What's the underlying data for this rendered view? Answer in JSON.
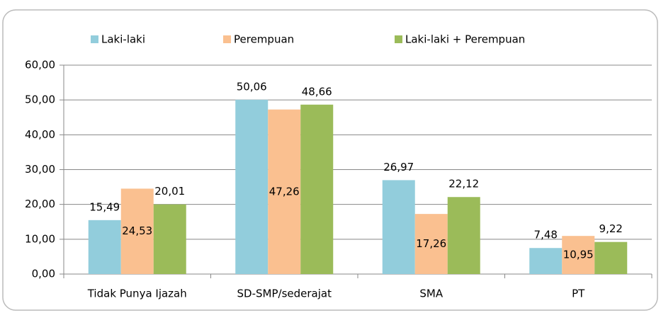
{
  "chart_data": {
    "type": "bar",
    "categories": [
      "Tidak Punya Ijazah",
      "SD-SMP/sederajat",
      "SMA",
      "PT"
    ],
    "series": [
      {
        "name": "Laki-laki",
        "color": "#92cddc",
        "values": [
          15.49,
          50.06,
          26.97,
          7.48
        ],
        "value_labels": [
          "15,49",
          "50,06",
          "26,97",
          "7,48"
        ]
      },
      {
        "name": "Perempuan",
        "color": "#fac090",
        "values": [
          24.53,
          47.26,
          17.26,
          10.95
        ],
        "value_labels": [
          "24,53",
          "47,26",
          "17,26",
          "10,95"
        ]
      },
      {
        "name": "Laki-laki + Perempuan",
        "color": "#9bbb59",
        "values": [
          20.01,
          48.66,
          22.12,
          9.22
        ],
        "value_labels": [
          "20,01",
          "48,66",
          "22,12",
          "9,22"
        ]
      }
    ],
    "ylim": [
      0,
      60
    ],
    "yticks": [
      {
        "value": 0,
        "label": "0,00"
      },
      {
        "value": 10,
        "label": "10,00"
      },
      {
        "value": 20,
        "label": "20,00"
      },
      {
        "value": 30,
        "label": "30,00"
      },
      {
        "value": 40,
        "label": "40,00"
      },
      {
        "value": 50,
        "label": "50,00"
      },
      {
        "value": 60,
        "label": "60,00"
      }
    ],
    "grid": true,
    "legend": "top"
  }
}
